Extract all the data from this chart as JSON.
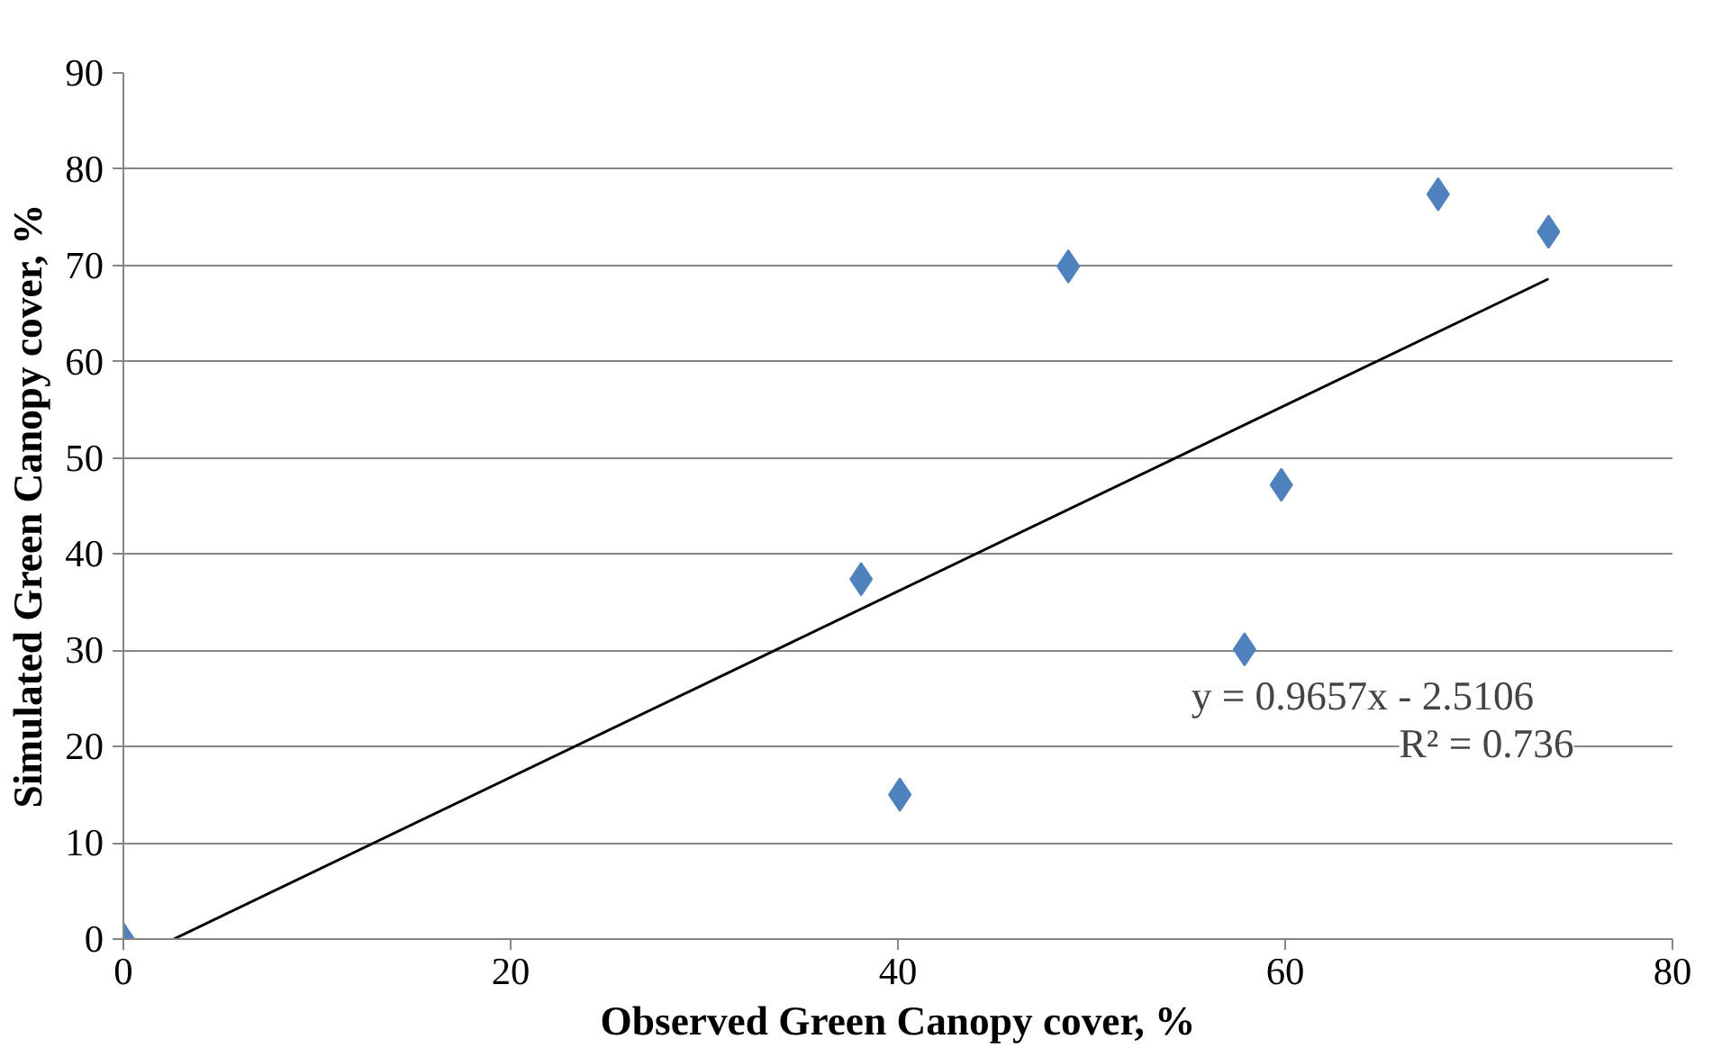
{
  "chart_data": {
    "type": "scatter",
    "xlabel": "Observed Green Canopy cover, %",
    "ylabel": "Simulated Green Canopy cover, %",
    "x": [
      0,
      38.1,
      40.1,
      48.8,
      57.9,
      59.8,
      67.9,
      73.6
    ],
    "series": [
      {
        "color": "#4f81bd",
        "marker": "diamond",
        "values": [
          0,
          37.4,
          15.0,
          69.9,
          30.1,
          47.2,
          77.4,
          73.5
        ]
      },
      {
        "type": "line",
        "color": "#000000",
        "marker": "none",
        "x": [
          2.6,
          73.6
        ],
        "values": [
          0,
          68.6
        ]
      }
    ],
    "annotations": [
      "y = 0.9657x - 2.5106",
      "R² = 0.736"
    ],
    "xlim": [
      0,
      80
    ],
    "xticks": [
      0,
      20,
      40,
      60,
      80
    ],
    "ylim": [
      0,
      90
    ],
    "yticks": [
      0,
      10,
      20,
      30,
      40,
      50,
      60,
      70,
      80,
      90
    ],
    "grid": "y"
  }
}
